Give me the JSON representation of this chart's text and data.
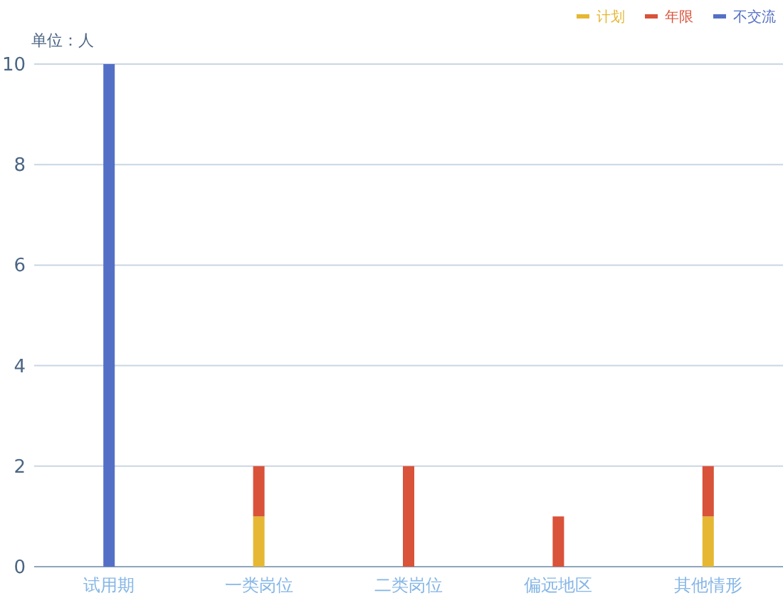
{
  "chart_data": {
    "type": "bar",
    "stacked": true,
    "ylabel": "单位：人",
    "categories": [
      "试用期",
      "一类岗位",
      "二类岗位",
      "偏远地区",
      "其他情形"
    ],
    "series": [
      {
        "name": "计划",
        "color": "#e5b733",
        "values": [
          0,
          1,
          0,
          0,
          1
        ]
      },
      {
        "name": "年限",
        "color": "#d9523a",
        "values": [
          0,
          1,
          2,
          1,
          1
        ]
      },
      {
        "name": "不交流",
        "color": "#5470c6",
        "values": [
          10,
          0,
          0,
          0,
          0
        ]
      }
    ],
    "ylim": [
      0,
      10
    ],
    "yticks": [
      0,
      2,
      4,
      6,
      8,
      10
    ],
    "grid": "y",
    "legend": "top right"
  }
}
